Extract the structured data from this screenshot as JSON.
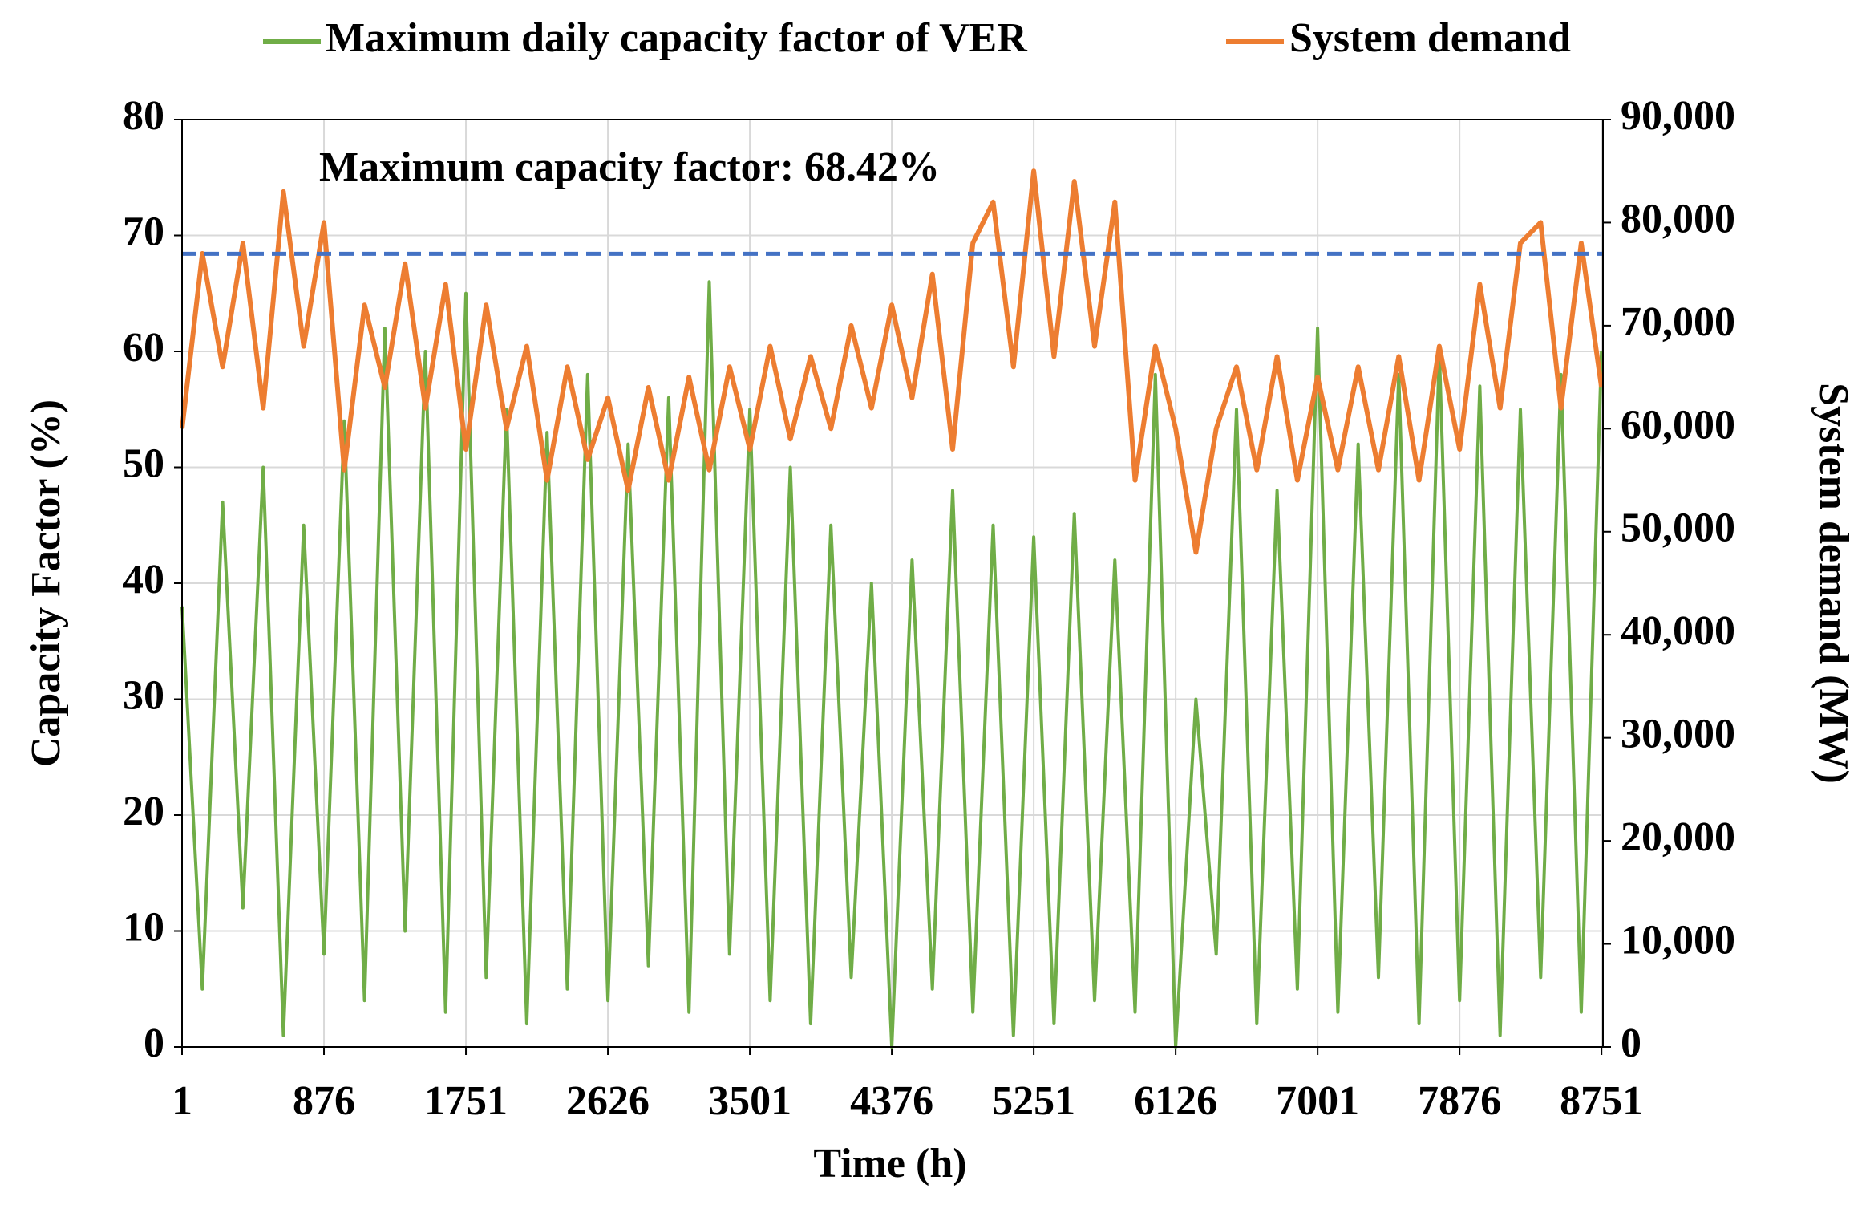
{
  "chart_data": {
    "type": "line",
    "annotation": "Maximum capacity factor: 68.42%",
    "reference_line": {
      "value": 68.42,
      "color": "#4472c4"
    },
    "xlabel": "Time (h)",
    "ylabel": "Capacity Factor (%)",
    "y2label": "System demand (MW)",
    "legend": "top",
    "grid": true,
    "x": [
      1,
      126,
      251,
      376,
      501,
      626,
      751,
      876,
      1001,
      1126,
      1251,
      1376,
      1501,
      1626,
      1751,
      1876,
      2001,
      2126,
      2251,
      2376,
      2501,
      2626,
      2751,
      2876,
      3001,
      3126,
      3251,
      3376,
      3501,
      3626,
      3751,
      3876,
      4001,
      4126,
      4251,
      4376,
      4501,
      4626,
      4751,
      4876,
      5001,
      5126,
      5251,
      5376,
      5501,
      5626,
      5751,
      5876,
      6001,
      6126,
      6251,
      6376,
      6501,
      6626,
      6751,
      6876,
      7001,
      7126,
      7251,
      7376,
      7501,
      7626,
      7751,
      7876,
      8001,
      8126,
      8251,
      8376,
      8501,
      8626,
      8751
    ],
    "xlim": [
      1,
      8760
    ],
    "xticks": [
      1,
      876,
      1751,
      2626,
      3501,
      4376,
      5251,
      6126,
      7001,
      7876,
      8751
    ],
    "ylim": [
      0,
      80
    ],
    "yticks": [
      0,
      10,
      20,
      30,
      40,
      50,
      60,
      70,
      80
    ],
    "y2lim": [
      0,
      90000
    ],
    "y2ticks": [
      0,
      {
        "value": 10000,
        "label": "10,000"
      },
      {
        "value": 20000,
        "label": "20,000"
      },
      {
        "value": 30000,
        "label": "30,000"
      },
      {
        "value": 40000,
        "label": "40,000"
      },
      {
        "value": 50000,
        "label": "50,000"
      },
      {
        "value": 60000,
        "label": "60,000"
      },
      {
        "value": 70000,
        "label": "70,000"
      },
      {
        "value": 80000,
        "label": "80,000"
      },
      {
        "value": 90000,
        "label": "90,000"
      }
    ],
    "series": [
      {
        "name": "Maximum daily capacity factor of VER",
        "color": "#70ad47",
        "axis": "y",
        "values": [
          38,
          5,
          47,
          12,
          50,
          1,
          45,
          8,
          54,
          4,
          62,
          10,
          60,
          3,
          65,
          6,
          55,
          2,
          53,
          5,
          58,
          4,
          52,
          7,
          56,
          3,
          66,
          8,
          55,
          4,
          50,
          2,
          45,
          6,
          40,
          0,
          42,
          5,
          48,
          3,
          45,
          1,
          44,
          2,
          46,
          4,
          42,
          3,
          58,
          0,
          30,
          8,
          55,
          2,
          48,
          5,
          62,
          3,
          52,
          6,
          58,
          2,
          60,
          4,
          57,
          1,
          55,
          6,
          58,
          3,
          60
        ]
      },
      {
        "name": "System demand",
        "color": "#ed7d31",
        "axis": "y2",
        "values": [
          60000,
          77000,
          66000,
          78000,
          62000,
          83000,
          68000,
          80000,
          56000,
          72000,
          64000,
          76000,
          62000,
          74000,
          58000,
          72000,
          60000,
          68000,
          55000,
          66000,
          57000,
          63000,
          54000,
          64000,
          55000,
          65000,
          56000,
          66000,
          58000,
          68000,
          59000,
          67000,
          60000,
          70000,
          62000,
          72000,
          63000,
          75000,
          58000,
          78000,
          82000,
          66000,
          85000,
          67000,
          84000,
          68000,
          82000,
          55000,
          68000,
          60000,
          48000,
          60000,
          66000,
          56000,
          67000,
          55000,
          65000,
          56000,
          66000,
          56000,
          67000,
          55000,
          68000,
          58000,
          74000,
          62000,
          78000,
          80000,
          62000,
          78000,
          64000
        ]
      }
    ]
  }
}
